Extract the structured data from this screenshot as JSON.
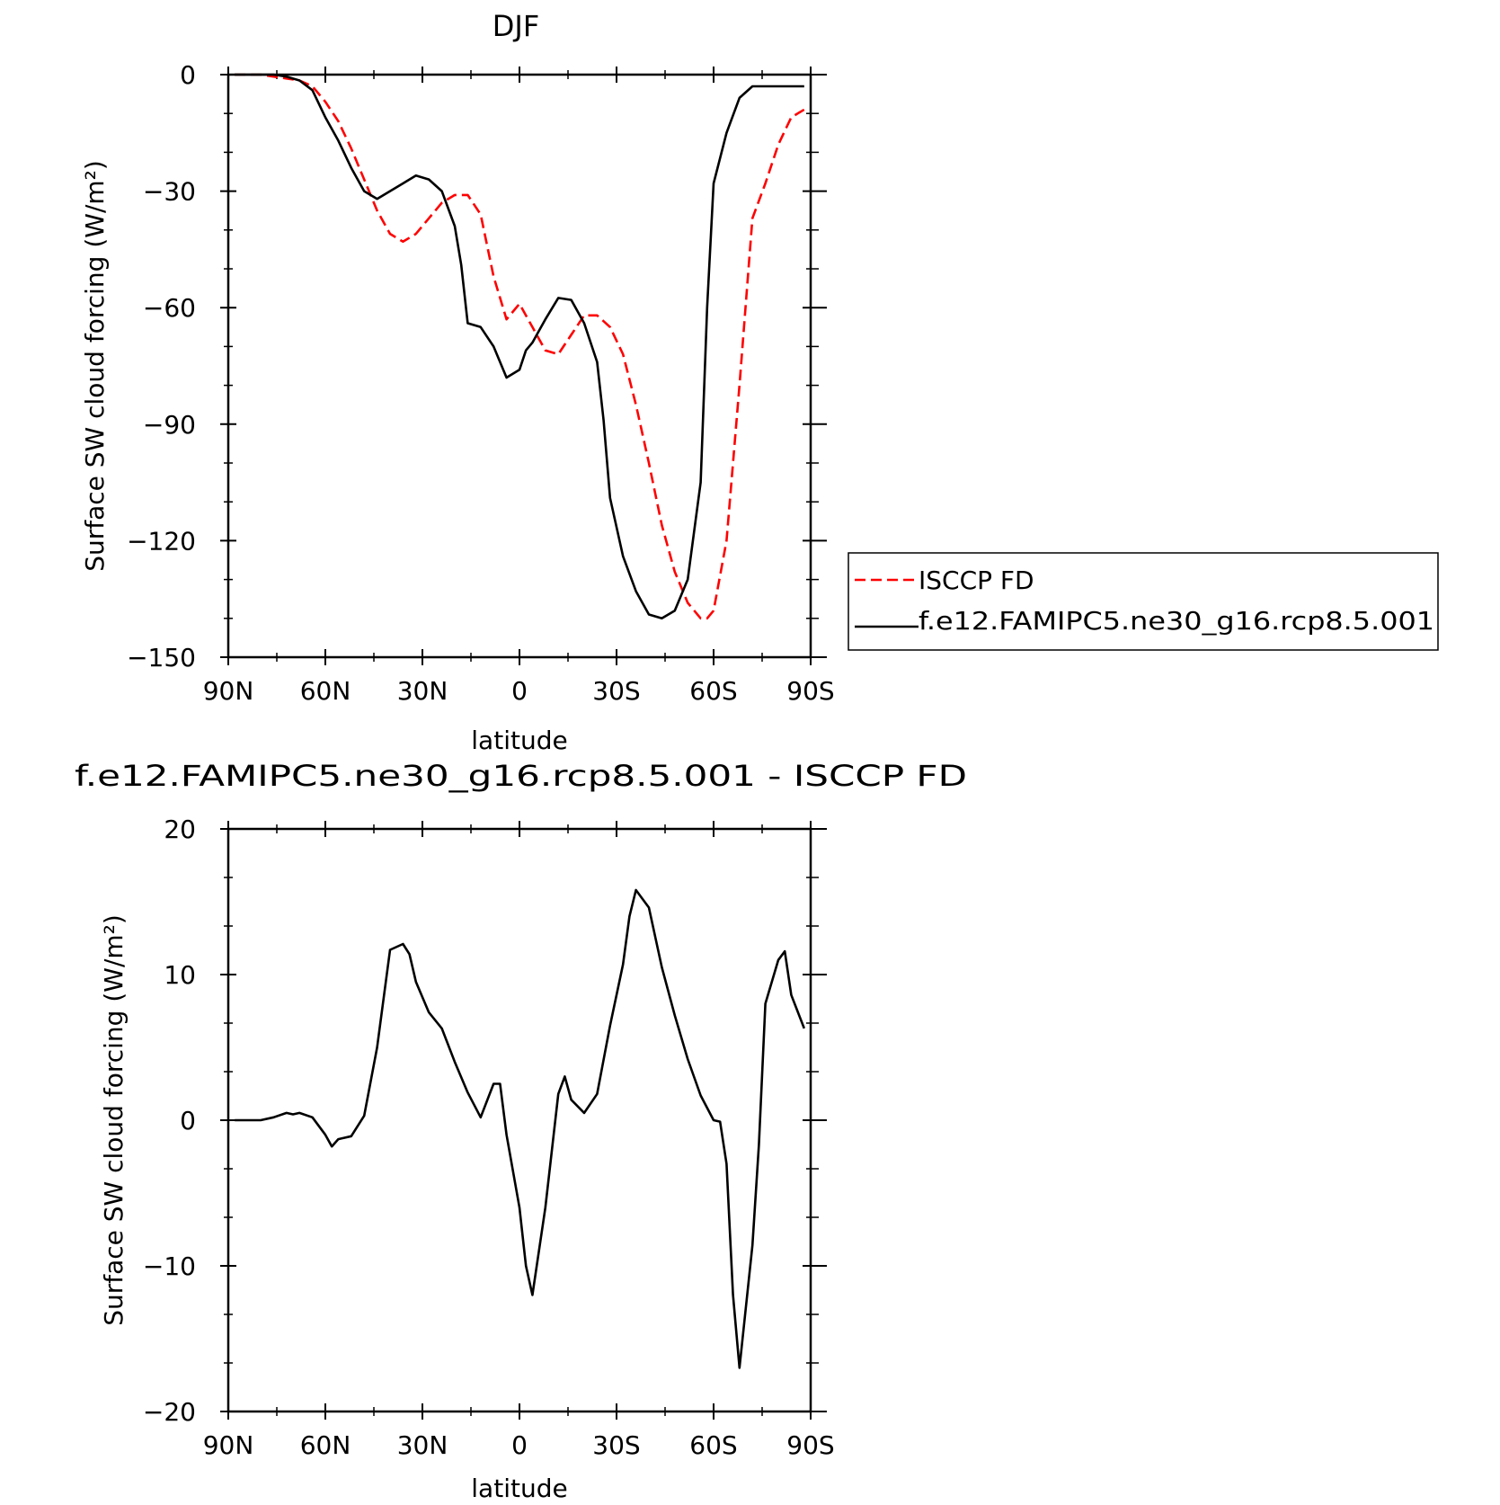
{
  "chart_data": [
    {
      "type": "line",
      "title": "DJF",
      "xlabel": "latitude",
      "ylabel": "Surface SW cloud forcing (W/m²)",
      "xlim": [
        90,
        -90
      ],
      "ylim": [
        -150,
        0
      ],
      "x_ticks": [
        90,
        60,
        30,
        0,
        -30,
        -60,
        -90
      ],
      "x_tick_labels": [
        "90N",
        "60N",
        "30N",
        "0",
        "30S",
        "60S",
        "90S"
      ],
      "y_ticks": [
        0,
        -30,
        -60,
        -90,
        -120,
        -150
      ],
      "y_tick_labels": [
        "0",
        "-30",
        "-60",
        "-90",
        "-120",
        "-150"
      ],
      "legend_position": "right",
      "series": [
        {
          "name": "ISCCP FD",
          "color": "#ff0000",
          "dash": "dashed",
          "x": [
            88,
            84,
            80,
            76,
            72,
            68,
            64,
            60,
            56,
            52,
            48,
            44,
            40,
            36,
            32,
            28,
            24,
            20,
            16,
            12,
            8,
            4,
            0,
            -4,
            -8,
            -12,
            -16,
            -20,
            -24,
            -28,
            -32,
            -36,
            -40,
            -44,
            -48,
            -52,
            -56,
            -58,
            -60,
            -64,
            -68,
            -72,
            -76,
            -80,
            -84,
            -88
          ],
          "values": [
            0,
            0,
            0,
            -0.5,
            -1,
            -1.5,
            -3,
            -7,
            -12,
            -19,
            -27,
            -35,
            -41,
            -43,
            -41,
            -37,
            -33,
            -31,
            -31,
            -36,
            -52,
            -63,
            -59,
            -65,
            -71,
            -72,
            -67,
            -62,
            -62,
            -65,
            -72,
            -85,
            -100,
            -116,
            -128,
            -136,
            -140,
            -140,
            -138,
            -120,
            -80,
            -37,
            -28,
            -18,
            -11,
            -9
          ]
        },
        {
          "name": "f.e12.FAMIPC5.ne30_g16.rcp8.5.001",
          "color": "#000000",
          "dash": "solid",
          "x": [
            88,
            84,
            80,
            76,
            72,
            68,
            64,
            60,
            56,
            52,
            48,
            44,
            40,
            36,
            32,
            28,
            24,
            20,
            18,
            16,
            12,
            8,
            4,
            0,
            -2,
            -4,
            -6,
            -8,
            -12,
            -16,
            -20,
            -24,
            -26,
            -28,
            -32,
            -36,
            -40,
            -44,
            -48,
            -52,
            -56,
            -58,
            -60,
            -64,
            -68,
            -72,
            -76,
            -80,
            -84,
            -88
          ],
          "values": [
            0,
            0,
            0,
            0,
            -0.5,
            -1.5,
            -4,
            -11,
            -17,
            -24,
            -30,
            -32,
            -30,
            -28,
            -26,
            -27,
            -30,
            -39,
            -49,
            -64,
            -65,
            -70,
            -78,
            -76,
            -71,
            -69,
            -66,
            -63,
            -57.5,
            -58,
            -64,
            -74,
            -89,
            -109,
            -124,
            -133,
            -139,
            -140,
            -138,
            -130,
            -105,
            -60,
            -28,
            -15,
            -6,
            -3,
            -3,
            -3,
            -3,
            -3
          ]
        }
      ]
    },
    {
      "type": "line",
      "title": "f.e12.FAMIPC5.ne30_g16.rcp8.5.001 - ISCCP FD",
      "xlabel": "latitude",
      "ylabel": "Surface SW cloud forcing (W/m²)",
      "xlim": [
        90,
        -90
      ],
      "ylim": [
        -20,
        20
      ],
      "x_ticks": [
        90,
        60,
        30,
        0,
        -30,
        -60,
        -90
      ],
      "x_tick_labels": [
        "90N",
        "60N",
        "30N",
        "0",
        "30S",
        "60S",
        "90S"
      ],
      "y_ticks": [
        20,
        10,
        0,
        -10,
        -20
      ],
      "y_tick_labels": [
        "20",
        "10",
        "0",
        "-10",
        "-20"
      ],
      "series": [
        {
          "color": "#000000",
          "dash": "solid",
          "x": [
            88,
            84,
            80,
            76,
            72,
            70,
            68,
            64,
            60,
            58,
            56,
            52,
            48,
            44,
            40,
            36,
            34,
            32,
            28,
            24,
            20,
            16,
            12,
            8,
            6,
            4,
            0,
            -2,
            -4,
            -6,
            -8,
            -12,
            -14,
            -16,
            -20,
            -24,
            -28,
            -32,
            -34,
            -36,
            -40,
            -44,
            -48,
            -52,
            -56,
            -60,
            -62,
            -64,
            -66,
            -68,
            -72,
            -74,
            -76,
            -80,
            -82,
            -84,
            -88
          ],
          "values": [
            0,
            0,
            0,
            0.2,
            0.5,
            0.4,
            0.5,
            0.2,
            -1,
            -1.8,
            -1.3,
            -1.1,
            0.3,
            5,
            11.7,
            12.1,
            11.4,
            9.5,
            7.4,
            6.3,
            4,
            1.9,
            0.2,
            2.5,
            2.5,
            -1,
            -6,
            -10,
            -12,
            -9,
            -6,
            1.8,
            3,
            1.4,
            0.5,
            1.8,
            6.5,
            10.7,
            14,
            15.8,
            14.6,
            10.5,
            7.2,
            4.2,
            1.7,
            0,
            -0.1,
            -3,
            -12,
            -17,
            -8.6,
            -1.7,
            8,
            11,
            11.6,
            8.6,
            6.3
          ]
        }
      ]
    }
  ]
}
